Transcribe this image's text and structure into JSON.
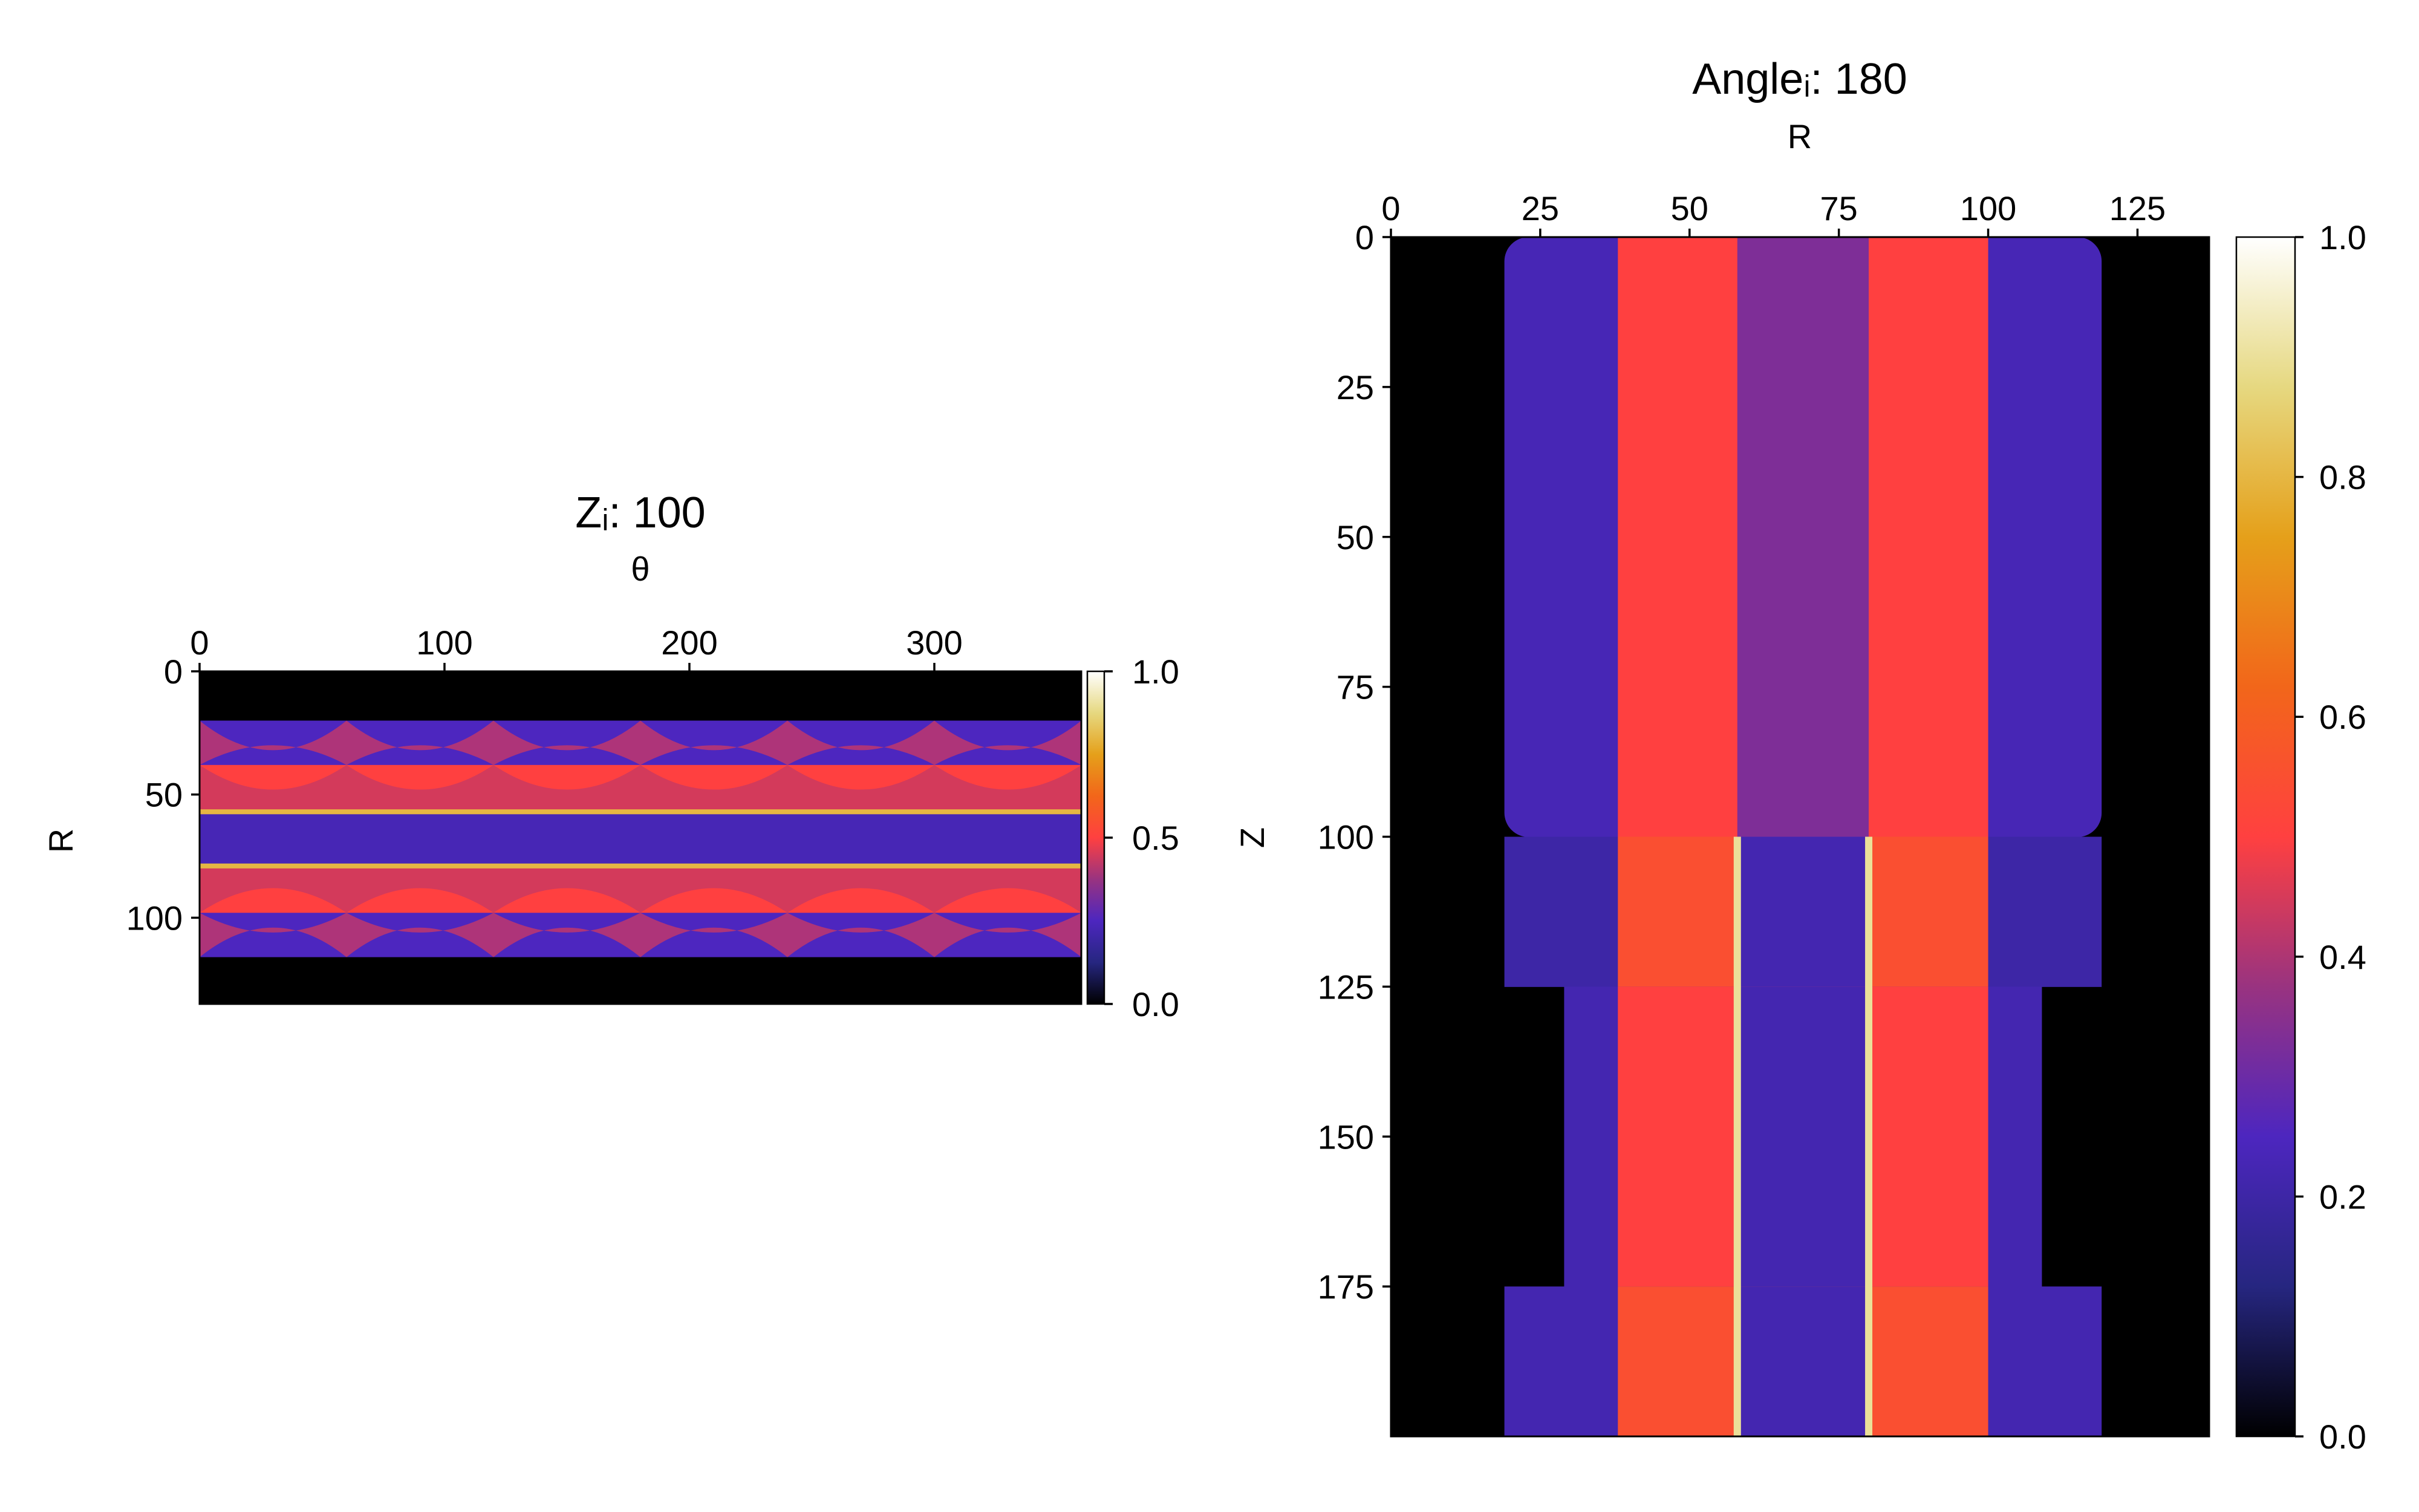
{
  "chart_data": [
    {
      "type": "heatmap",
      "title": "Zᵢ: 100",
      "xlabel": "θ",
      "ylabel": "R",
      "xlim": [
        0,
        360
      ],
      "ylim": [
        135,
        0
      ],
      "x_ticks": [
        "0",
        "100",
        "200",
        "300"
      ],
      "y_ticks": [
        "0",
        "50",
        "100"
      ],
      "x_tick_values": [
        0,
        100,
        200,
        300
      ],
      "y_tick_values": [
        0,
        50,
        100
      ],
      "x_axis_position": "top",
      "colormap": "CMRmap",
      "colorbar": {
        "range": [
          0.0,
          1.0
        ],
        "ticks": [
          "0.0",
          "0.5",
          "1.0"
        ],
        "tick_values": [
          0.0,
          0.5,
          1.0
        ]
      },
      "bands": [
        {
          "r": [
            0,
            20
          ],
          "value": 0.0
        },
        {
          "r": [
            20,
            38
          ],
          "value": 0.25,
          "description_free": true
        },
        {
          "r": [
            38,
            56
          ],
          "value": 0.5
        },
        {
          "r": [
            56,
            58
          ],
          "value": 0.8
        },
        {
          "r": [
            58,
            78
          ],
          "value": 0.23
        },
        {
          "r": [
            78,
            80
          ],
          "value": 0.8
        },
        {
          "r": [
            80,
            98
          ],
          "value": 0.5
        },
        {
          "r": [
            98,
            116
          ],
          "value": 0.25
        },
        {
          "r": [
            116,
            135
          ],
          "value": 0.0
        }
      ],
      "lobe_period_deg": 60
    },
    {
      "type": "heatmap",
      "title": "Angleᵢ: 180",
      "xlabel": "R",
      "ylabel": "Z",
      "xlim": [
        0,
        137
      ],
      "ylim": [
        200,
        0
      ],
      "x_ticks": [
        "0",
        "25",
        "50",
        "75",
        "100",
        "125"
      ],
      "y_ticks": [
        "0",
        "25",
        "50",
        "75",
        "100",
        "125",
        "150",
        "175"
      ],
      "x_tick_values": [
        0,
        25,
        50,
        75,
        100,
        125
      ],
      "y_tick_values": [
        0,
        25,
        50,
        75,
        100,
        125,
        150,
        175
      ],
      "x_axis_position": "top",
      "colormap": "CMRmap",
      "colorbar": {
        "range": [
          0.0,
          1.0
        ],
        "ticks": [
          "0.0",
          "0.2",
          "0.4",
          "0.6",
          "0.8",
          "1.0"
        ],
        "tick_values": [
          0.0,
          0.2,
          0.4,
          0.6,
          0.8,
          1.0
        ]
      },
      "regions": [
        {
          "z": [
            0,
            100
          ],
          "outer_r": [
            19,
            119
          ],
          "outer_value": 0.23,
          "inner_r": [
            38,
            100
          ],
          "inner_value": 0.5,
          "core_r": [
            58,
            80
          ],
          "core_value": 0.33
        },
        {
          "z": [
            100,
            125
          ],
          "outer_r": [
            19,
            119
          ],
          "outer_value": 0.2,
          "inner_r": [
            38,
            100
          ],
          "inner_value": 0.55,
          "core_r": [
            58,
            80
          ],
          "core_value": 0.22
        },
        {
          "z": [
            125,
            175
          ],
          "outer_r": [
            29,
            109
          ],
          "outer_value": 0.22,
          "inner_r": [
            38,
            100
          ],
          "inner_value": 0.5,
          "core_r": [
            58,
            80
          ],
          "core_value": 0.22
        },
        {
          "z": [
            175,
            200
          ],
          "outer_r": [
            19,
            119
          ],
          "outer_value": 0.22,
          "inner_r": [
            38,
            100
          ],
          "inner_value": 0.55,
          "core_r": [
            58,
            80
          ],
          "core_value": 0.22
        }
      ],
      "bright_lines_r": [
        58,
        80
      ]
    }
  ]
}
